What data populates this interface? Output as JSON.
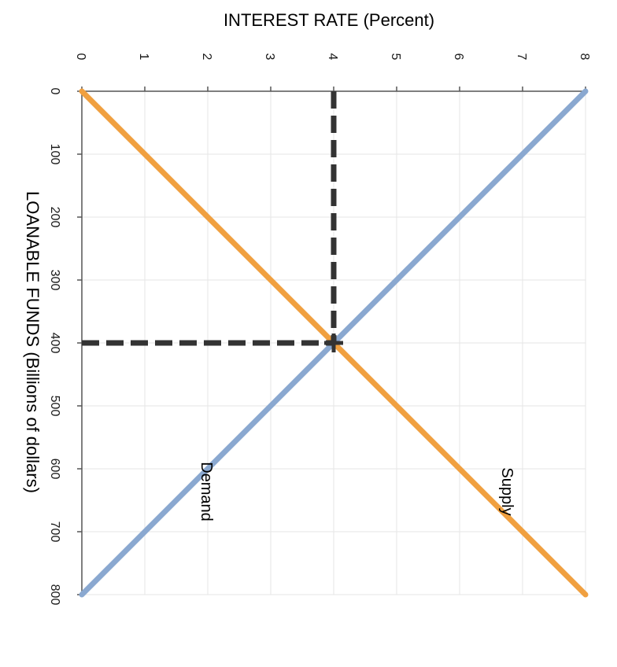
{
  "chart_data": {
    "type": "line",
    "title": "",
    "xlabel": "INTEREST RATE (Percent)",
    "ylabel": "LOANABLE FUNDS (Billions of dollars)",
    "interest_ticks": [
      "0",
      "1",
      "2",
      "3",
      "4",
      "5",
      "6",
      "7",
      "8"
    ],
    "funds_ticks": [
      "0",
      "100",
      "200",
      "300",
      "400",
      "500",
      "600",
      "700",
      "800"
    ],
    "interest_range": [
      0,
      8
    ],
    "funds_range": [
      0,
      800
    ],
    "grid": true,
    "series": [
      {
        "name": "Supply",
        "label": "Supply",
        "color": "#f0a040",
        "points": [
          {
            "rate": 0,
            "funds": 0
          },
          {
            "rate": 8,
            "funds": 800
          }
        ]
      },
      {
        "name": "Demand",
        "label": "Demand",
        "color": "#8aa8d0",
        "points": [
          {
            "rate": 8,
            "funds": 0
          },
          {
            "rate": 0,
            "funds": 800
          }
        ]
      }
    ],
    "equilibrium": {
      "rate": 4,
      "funds": 400,
      "color": "#333333"
    }
  }
}
